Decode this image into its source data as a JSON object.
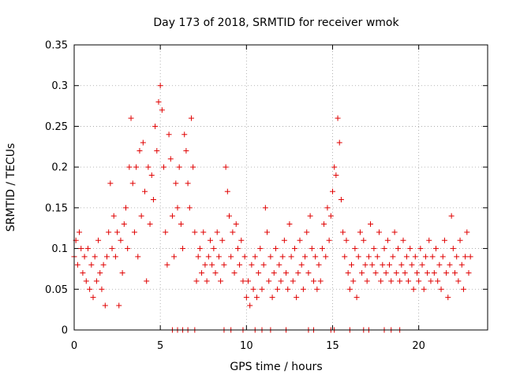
{
  "chart_data": {
    "type": "scatter",
    "title": "Day 173 of 2018, SRMTID for receiver wmok",
    "xlabel": "GPS time / hours",
    "ylabel": "SRMTID / TECUs",
    "xlim": [
      0,
      24
    ],
    "ylim": [
      0,
      0.35
    ],
    "xticks": [
      0,
      5,
      10,
      15,
      20
    ],
    "xtick_labels": [
      "0",
      "5",
      "10",
      "15",
      "20"
    ],
    "yticks": [
      0,
      0.05,
      0.1,
      0.15,
      0.2,
      0.25,
      0.3,
      0.35
    ],
    "ytick_labels": [
      "0",
      "0.05",
      "0.1",
      "0.15",
      "0.2",
      "0.25",
      "0.3",
      "0.35"
    ],
    "grid": true,
    "marker": "+",
    "color": "#e00000",
    "series": [
      {
        "name": "SRMTID",
        "points": [
          [
            0.0,
            0.09
          ],
          [
            0.1,
            0.11
          ],
          [
            0.2,
            0.08
          ],
          [
            0.3,
            0.12
          ],
          [
            0.4,
            0.1
          ],
          [
            0.5,
            0.07
          ],
          [
            0.6,
            0.09
          ],
          [
            0.7,
            0.06
          ],
          [
            0.8,
            0.1
          ],
          [
            0.9,
            0.05
          ],
          [
            1.0,
            0.08
          ],
          [
            1.1,
            0.04
          ],
          [
            1.2,
            0.09
          ],
          [
            1.3,
            0.06
          ],
          [
            1.4,
            0.11
          ],
          [
            1.5,
            0.07
          ],
          [
            1.6,
            0.05
          ],
          [
            1.7,
            0.08
          ],
          [
            1.8,
            0.03
          ],
          [
            1.9,
            0.09
          ],
          [
            2.0,
            0.12
          ],
          [
            2.1,
            0.18
          ],
          [
            2.2,
            0.1
          ],
          [
            2.3,
            0.14
          ],
          [
            2.4,
            0.09
          ],
          [
            2.5,
            0.12
          ],
          [
            2.6,
            0.03
          ],
          [
            2.7,
            0.11
          ],
          [
            2.8,
            0.07
          ],
          [
            2.9,
            0.13
          ],
          [
            3.0,
            0.15
          ],
          [
            3.1,
            0.1
          ],
          [
            3.2,
            0.2
          ],
          [
            3.3,
            0.26
          ],
          [
            3.4,
            0.18
          ],
          [
            3.5,
            0.12
          ],
          [
            3.6,
            0.2
          ],
          [
            3.7,
            0.09
          ],
          [
            3.8,
            0.22
          ],
          [
            3.9,
            0.14
          ],
          [
            4.0,
            0.23
          ],
          [
            4.1,
            0.17
          ],
          [
            4.2,
            0.06
          ],
          [
            4.3,
            0.2
          ],
          [
            4.4,
            0.13
          ],
          [
            4.5,
            0.19
          ],
          [
            4.6,
            0.16
          ],
          [
            4.7,
            0.25
          ],
          [
            4.8,
            0.22
          ],
          [
            4.9,
            0.28
          ],
          [
            5.0,
            0.3
          ],
          [
            5.1,
            0.27
          ],
          [
            5.2,
            0.2
          ],
          [
            5.3,
            0.12
          ],
          [
            5.4,
            0.08
          ],
          [
            5.5,
            0.24
          ],
          [
            5.6,
            0.21
          ],
          [
            5.7,
            0.14
          ],
          [
            5.8,
            0.09
          ],
          [
            5.9,
            0.18
          ],
          [
            6.0,
            0.15
          ],
          [
            6.1,
            0.2
          ],
          [
            6.2,
            0.13
          ],
          [
            6.3,
            0.1
          ],
          [
            6.4,
            0.24
          ],
          [
            6.5,
            0.22
          ],
          [
            6.6,
            0.18
          ],
          [
            6.7,
            0.15
          ],
          [
            6.8,
            0.26
          ],
          [
            6.9,
            0.2
          ],
          [
            7.0,
            0.12
          ],
          [
            7.1,
            0.06
          ],
          [
            7.2,
            0.09
          ],
          [
            7.3,
            0.1
          ],
          [
            7.4,
            0.07
          ],
          [
            7.5,
            0.12
          ],
          [
            7.6,
            0.08
          ],
          [
            7.7,
            0.06
          ],
          [
            7.8,
            0.09
          ],
          [
            7.9,
            0.11
          ],
          [
            8.0,
            0.08
          ],
          [
            8.1,
            0.1
          ],
          [
            8.2,
            0.07
          ],
          [
            8.3,
            0.12
          ],
          [
            8.4,
            0.09
          ],
          [
            8.5,
            0.06
          ],
          [
            8.6,
            0.11
          ],
          [
            8.7,
            0.08
          ],
          [
            8.8,
            0.2
          ],
          [
            8.9,
            0.17
          ],
          [
            9.0,
            0.14
          ],
          [
            9.1,
            0.09
          ],
          [
            9.2,
            0.12
          ],
          [
            9.3,
            0.07
          ],
          [
            9.4,
            0.13
          ],
          [
            9.5,
            0.1
          ],
          [
            9.6,
            0.08
          ],
          [
            9.7,
            0.11
          ],
          [
            9.8,
            0.06
          ],
          [
            9.9,
            0.09
          ],
          [
            10.0,
            0.04
          ],
          [
            10.1,
            0.06
          ],
          [
            10.2,
            0.03
          ],
          [
            10.3,
            0.08
          ],
          [
            10.4,
            0.05
          ],
          [
            10.5,
            0.09
          ],
          [
            10.6,
            0.04
          ],
          [
            10.7,
            0.07
          ],
          [
            10.8,
            0.1
          ],
          [
            10.9,
            0.05
          ],
          [
            11.0,
            0.08
          ],
          [
            11.1,
            0.15
          ],
          [
            11.2,
            0.12
          ],
          [
            11.3,
            0.06
          ],
          [
            11.4,
            0.09
          ],
          [
            11.5,
            0.04
          ],
          [
            11.6,
            0.07
          ],
          [
            11.7,
            0.1
          ],
          [
            11.8,
            0.05
          ],
          [
            11.9,
            0.08
          ],
          [
            12.0,
            0.06
          ],
          [
            12.1,
            0.09
          ],
          [
            12.2,
            0.11
          ],
          [
            12.3,
            0.07
          ],
          [
            12.4,
            0.05
          ],
          [
            12.5,
            0.13
          ],
          [
            12.6,
            0.09
          ],
          [
            12.7,
            0.06
          ],
          [
            12.8,
            0.1
          ],
          [
            12.9,
            0.04
          ],
          [
            13.0,
            0.07
          ],
          [
            13.1,
            0.11
          ],
          [
            13.2,
            0.08
          ],
          [
            13.3,
            0.05
          ],
          [
            13.4,
            0.09
          ],
          [
            13.5,
            0.12
          ],
          [
            13.6,
            0.07
          ],
          [
            13.7,
            0.14
          ],
          [
            13.8,
            0.1
          ],
          [
            13.9,
            0.06
          ],
          [
            14.0,
            0.09
          ],
          [
            14.1,
            0.05
          ],
          [
            14.2,
            0.08
          ],
          [
            14.3,
            0.06
          ],
          [
            14.4,
            0.1
          ],
          [
            14.5,
            0.13
          ],
          [
            14.6,
            0.09
          ],
          [
            14.7,
            0.15
          ],
          [
            14.8,
            0.11
          ],
          [
            14.9,
            0.14
          ],
          [
            15.0,
            0.17
          ],
          [
            15.1,
            0.2
          ],
          [
            15.2,
            0.19
          ],
          [
            15.3,
            0.26
          ],
          [
            15.4,
            0.23
          ],
          [
            15.5,
            0.16
          ],
          [
            15.6,
            0.12
          ],
          [
            15.7,
            0.09
          ],
          [
            15.8,
            0.11
          ],
          [
            15.9,
            0.07
          ],
          [
            16.0,
            0.05
          ],
          [
            16.1,
            0.08
          ],
          [
            16.2,
            0.06
          ],
          [
            16.3,
            0.1
          ],
          [
            16.4,
            0.04
          ],
          [
            16.5,
            0.09
          ],
          [
            16.6,
            0.12
          ],
          [
            16.7,
            0.07
          ],
          [
            16.8,
            0.11
          ],
          [
            16.9,
            0.08
          ],
          [
            17.0,
            0.06
          ],
          [
            17.1,
            0.09
          ],
          [
            17.2,
            0.13
          ],
          [
            17.3,
            0.08
          ],
          [
            17.4,
            0.1
          ],
          [
            17.5,
            0.07
          ],
          [
            17.6,
            0.09
          ],
          [
            17.7,
            0.12
          ],
          [
            17.8,
            0.06
          ],
          [
            17.9,
            0.08
          ],
          [
            18.0,
            0.1
          ],
          [
            18.1,
            0.07
          ],
          [
            18.2,
            0.11
          ],
          [
            18.3,
            0.08
          ],
          [
            18.4,
            0.06
          ],
          [
            18.5,
            0.09
          ],
          [
            18.6,
            0.12
          ],
          [
            18.7,
            0.07
          ],
          [
            18.8,
            0.1
          ],
          [
            18.9,
            0.06
          ],
          [
            19.0,
            0.08
          ],
          [
            19.1,
            0.11
          ],
          [
            19.2,
            0.07
          ],
          [
            19.3,
            0.09
          ],
          [
            19.4,
            0.06
          ],
          [
            19.5,
            0.1
          ],
          [
            19.6,
            0.08
          ],
          [
            19.7,
            0.05
          ],
          [
            19.8,
            0.09
          ],
          [
            19.9,
            0.07
          ],
          [
            20.0,
            0.06
          ],
          [
            20.1,
            0.1
          ],
          [
            20.2,
            0.08
          ],
          [
            20.3,
            0.05
          ],
          [
            20.4,
            0.09
          ],
          [
            20.5,
            0.07
          ],
          [
            20.6,
            0.11
          ],
          [
            20.7,
            0.06
          ],
          [
            20.8,
            0.09
          ],
          [
            20.9,
            0.07
          ],
          [
            21.0,
            0.1
          ],
          [
            21.1,
            0.06
          ],
          [
            21.2,
            0.08
          ],
          [
            21.3,
            0.05
          ],
          [
            21.4,
            0.09
          ],
          [
            21.5,
            0.11
          ],
          [
            21.6,
            0.07
          ],
          [
            21.7,
            0.04
          ],
          [
            21.8,
            0.08
          ],
          [
            21.9,
            0.14
          ],
          [
            22.0,
            0.1
          ],
          [
            22.1,
            0.07
          ],
          [
            22.2,
            0.09
          ],
          [
            22.3,
            0.06
          ],
          [
            22.4,
            0.11
          ],
          [
            22.5,
            0.08
          ],
          [
            22.6,
            0.05
          ],
          [
            22.7,
            0.09
          ],
          [
            22.8,
            0.12
          ],
          [
            22.9,
            0.07
          ],
          [
            23.0,
            0.09
          ]
        ]
      }
    ],
    "zero_value_points_x": [
      5.7,
      6.0,
      6.3,
      6.6,
      7.0,
      8.7,
      9.1,
      9.8,
      10.5,
      10.9,
      11.4,
      12.3,
      13.6,
      13.9,
      14.9,
      15.1,
      16.0,
      16.8,
      17.1,
      18.0,
      18.4,
      18.9
    ]
  }
}
